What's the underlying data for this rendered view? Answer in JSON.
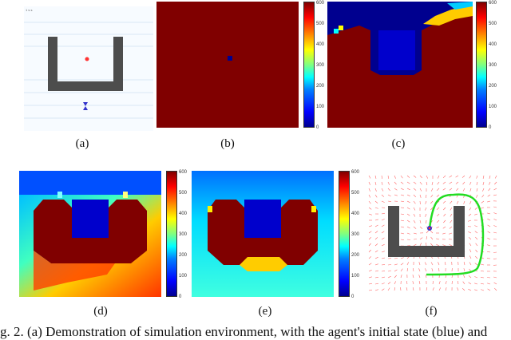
{
  "panels": [
    {
      "id": "a",
      "label": "(a)"
    },
    {
      "id": "b",
      "label": "(b)"
    },
    {
      "id": "c",
      "label": "(c)"
    },
    {
      "id": "d",
      "label": "(d)"
    },
    {
      "id": "e",
      "label": "(e)"
    },
    {
      "id": "f",
      "label": "(f)"
    }
  ],
  "colorbar_ticks": [
    "600",
    "500",
    "400",
    "300",
    "200",
    "100",
    "0"
  ],
  "caption": "g. 2. (a) Demonstration of simulation environment, with the agent's initial state (blue) and",
  "colors": {
    "obstacle": "#4d4d4d",
    "dark_red": "#800000",
    "blue": "#00008f",
    "agent": "#3333cc",
    "goal": "#ff3333",
    "trajectory": "#22dd22",
    "field_arrows": "#ff6666"
  }
}
